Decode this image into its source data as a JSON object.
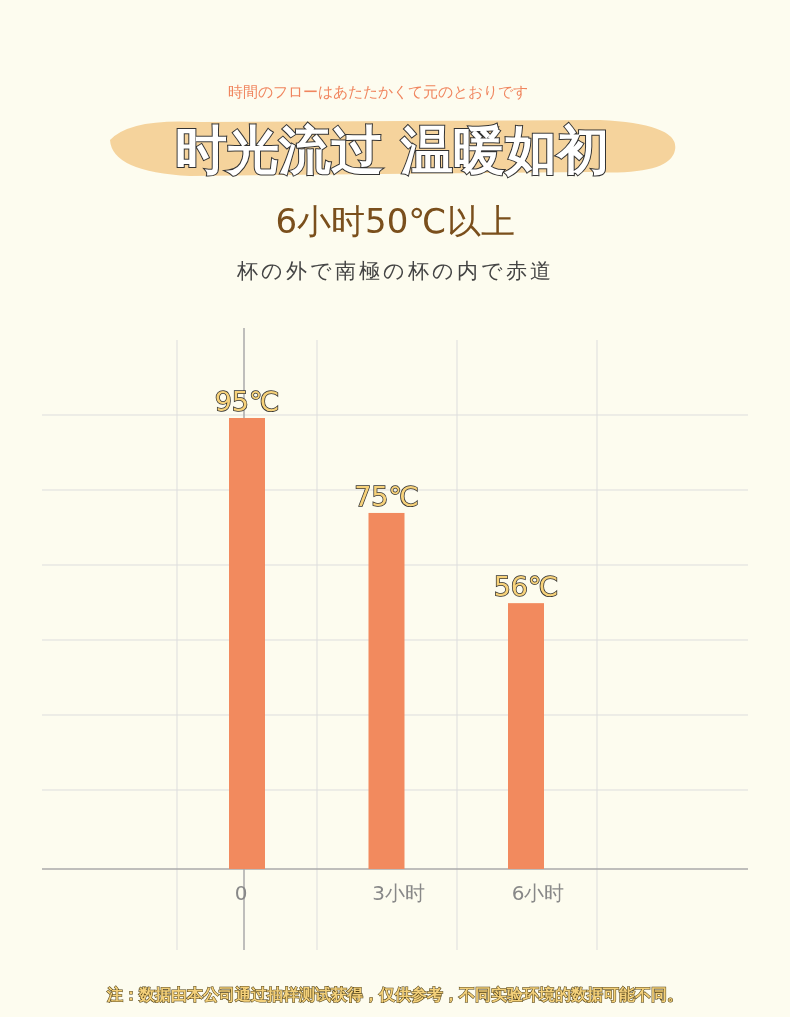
{
  "chart_data": {
    "type": "bar",
    "title": "时光流过 温暖如初",
    "subtitle": "6小时50℃以上",
    "annotations": [
      "時間のフローはあたたかくて元のとおりです",
      "杯の外で南極の杯の内で赤道",
      "注：数据由本公司通过抽样测试获得，仅供参考，不同实验环境的数据可能不同。"
    ],
    "categories": [
      "0",
      "3小时",
      "6小时"
    ],
    "values": [
      95,
      75,
      56
    ],
    "value_labels": [
      "95℃",
      "75℃",
      "56℃"
    ],
    "color": "#f28a5e",
    "ref_lines": [
      {
        "axis": "x",
        "value": "0",
        "color": "#aaaaaa"
      }
    ],
    "grid": true
  }
}
